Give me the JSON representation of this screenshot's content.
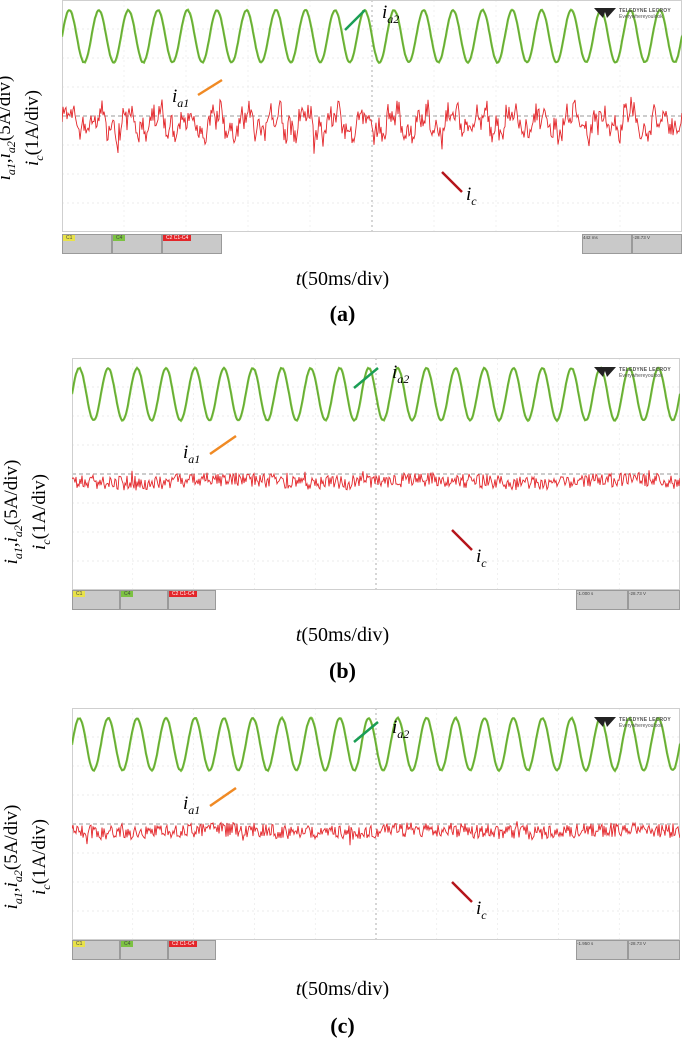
{
  "brand": {
    "name": "TELEDYNE LECROY",
    "tagline": "Everywhereyoulook"
  },
  "axis_labels": {
    "y_line1_parts": [
      "i",
      "a1",
      ",",
      "i",
      "a2",
      "(5A/div)"
    ],
    "y_line2_parts": [
      "i",
      "c",
      "(1A/div)"
    ],
    "x_parts": [
      "t",
      "(50ms/div)"
    ]
  },
  "trace_labels": {
    "ia1": [
      "i",
      "a1"
    ],
    "ia2": [
      "i",
      "a2"
    ],
    "ic": [
      "i",
      "c"
    ]
  },
  "colors": {
    "ia1": "#f08a24",
    "ia2": "#1a9e55",
    "ic": "#d9211c",
    "green_trace": "#7cc242",
    "red_trace": "#e3262a"
  },
  "panels": [
    {
      "caption": "(a)",
      "status_left": [
        "C1",
        "C4",
        "C2 C1-C4"
      ],
      "status_right": [
        "442 ms",
        "-28.73 V"
      ]
    },
    {
      "caption": "(b)",
      "status_left": [
        "C1",
        "C4",
        "C2 C1-C4"
      ],
      "status_right": [
        "-1.000 s",
        "-28.73 V"
      ]
    },
    {
      "caption": "(c)",
      "status_left": [
        "C1",
        "C4",
        "C2 C1-C4"
      ],
      "status_right": [
        "-1.950 s",
        "-28.73 V"
      ]
    }
  ],
  "chart_data": [
    {
      "type": "line",
      "title": "(a)",
      "xlabel": "t(50ms/div)",
      "ylabel": "ia1,ia2(5A/div) ic(1A/div)",
      "series": [
        {
          "name": "ia1",
          "shape": "sinusoid",
          "cycles_visible": 21,
          "amplitude_div": 0.9
        },
        {
          "name": "ia2",
          "shape": "sinusoid",
          "cycles_visible": 21,
          "amplitude_div": 0.9
        },
        {
          "name": "ic",
          "shape": "noisy periodic ripple",
          "amplitude_div": 0.6,
          "noise": 0.35
        }
      ]
    },
    {
      "type": "line",
      "title": "(b)",
      "xlabel": "t(50ms/div)",
      "ylabel": "ia1,ia2(5A/div) ic(1A/div)",
      "series": [
        {
          "name": "ia1",
          "shape": "sinusoid",
          "cycles_visible": 21,
          "amplitude_div": 0.9
        },
        {
          "name": "ia2",
          "shape": "sinusoid",
          "cycles_visible": 21,
          "amplitude_div": 0.9
        },
        {
          "name": "ic",
          "shape": "noise band",
          "amplitude_div": 0.2,
          "noise": 0.25
        }
      ]
    },
    {
      "type": "line",
      "title": "(c)",
      "xlabel": "t(50ms/div)",
      "ylabel": "ia1,ia2(5A/div) ic(1A/div)",
      "series": [
        {
          "name": "ia1",
          "shape": "sinusoid",
          "cycles_visible": 21,
          "amplitude_div": 0.9
        },
        {
          "name": "ia2",
          "shape": "sinusoid",
          "cycles_visible": 21,
          "amplitude_div": 0.9
        },
        {
          "name": "ic",
          "shape": "noise band",
          "amplitude_div": 0.2,
          "noise": 0.25
        }
      ]
    }
  ]
}
